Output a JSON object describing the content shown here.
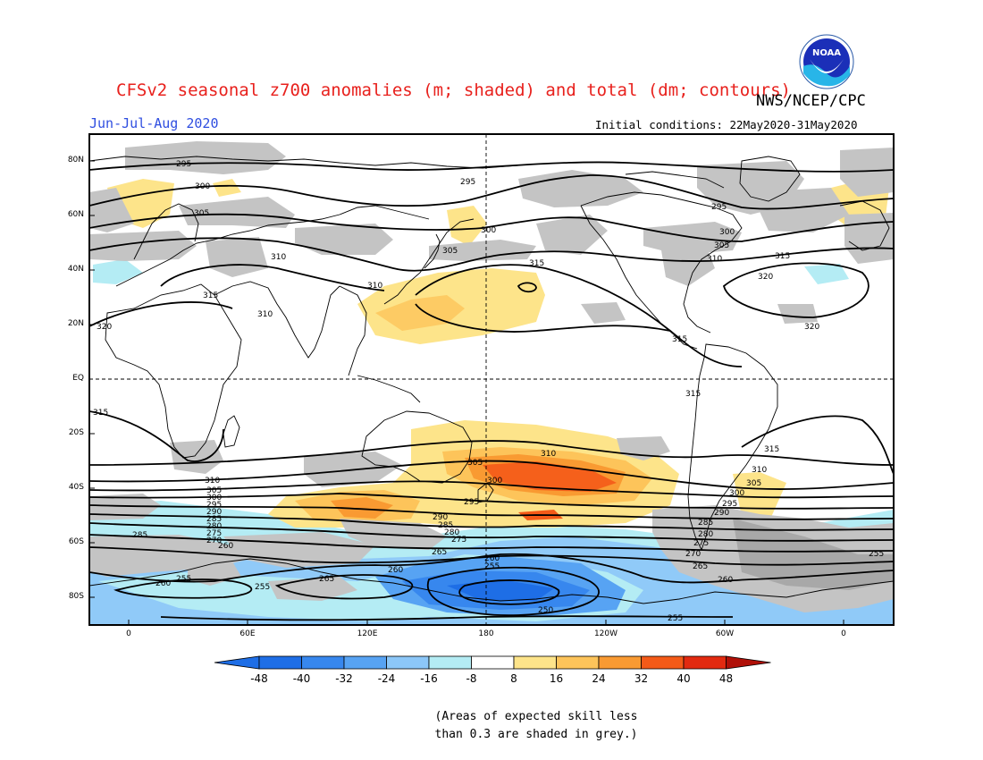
{
  "title": "CFSv2 seasonal z700 anomalies (m; shaded) and total (dm; contours)",
  "organization": "NWS/NCEP/CPC",
  "logo_text": "NOAA",
  "period": "Jun-Jul-Aug 2020",
  "initial_conditions": "Initial conditions: 22May2020-31May2020",
  "map": {
    "lat_labels": [
      "80N",
      "60N",
      "40N",
      "20N",
      "EQ",
      "20S",
      "40S",
      "60S",
      "80S"
    ],
    "lon_labels": [
      "0",
      "60E",
      "120E",
      "180",
      "120W",
      "60W",
      "0"
    ],
    "contour_labels": {
      "north": [
        "295",
        "300",
        "305",
        "310",
        "315",
        "320"
      ],
      "south": [
        "315",
        "310",
        "305",
        "300",
        "295",
        "290",
        "285",
        "280",
        "275",
        "270",
        "265",
        "260",
        "255",
        "250"
      ],
      "displayed": [
        {
          "text": "295",
          "id": "c295a"
        },
        {
          "text": "295",
          "id": "c295b"
        },
        {
          "text": "295",
          "id": "c295c"
        },
        {
          "text": "300",
          "id": "c300a"
        },
        {
          "text": "300",
          "id": "c300b"
        },
        {
          "text": "300",
          "id": "c300c"
        },
        {
          "text": "305",
          "id": "c305a"
        },
        {
          "text": "305",
          "id": "c305b"
        },
        {
          "text": "305",
          "id": "c305c"
        },
        {
          "text": "310",
          "id": "c310a"
        },
        {
          "text": "310",
          "id": "c310b"
        },
        {
          "text": "310",
          "id": "c310c"
        },
        {
          "text": "310",
          "id": "c310d"
        },
        {
          "text": "315",
          "id": "c315a"
        },
        {
          "text": "315",
          "id": "c315b"
        },
        {
          "text": "315",
          "id": "c315c"
        },
        {
          "text": "315",
          "id": "c315d"
        },
        {
          "text": "320",
          "id": "c320a"
        },
        {
          "text": "320",
          "id": "c320b"
        },
        {
          "text": "320",
          "id": "c320c"
        },
        {
          "text": "315",
          "id": "s315a"
        },
        {
          "text": "315",
          "id": "s315b"
        },
        {
          "text": "315",
          "id": "s315c"
        },
        {
          "text": "310",
          "id": "s310a"
        },
        {
          "text": "310",
          "id": "s310b"
        },
        {
          "text": "310",
          "id": "s310c"
        },
        {
          "text": "305",
          "id": "s305a"
        },
        {
          "text": "305",
          "id": "s305b"
        },
        {
          "text": "305",
          "id": "s305c"
        },
        {
          "text": "300",
          "id": "s300a"
        },
        {
          "text": "300",
          "id": "s300b"
        },
        {
          "text": "300",
          "id": "s300c"
        },
        {
          "text": "295",
          "id": "s295a"
        },
        {
          "text": "295",
          "id": "s295b"
        },
        {
          "text": "295",
          "id": "s295c"
        },
        {
          "text": "290",
          "id": "s290a"
        },
        {
          "text": "290",
          "id": "s290b"
        },
        {
          "text": "290",
          "id": "s290c"
        },
        {
          "text": "285",
          "id": "s285a"
        },
        {
          "text": "285",
          "id": "s285b"
        },
        {
          "text": "285",
          "id": "s285c"
        },
        {
          "text": "285",
          "id": "s285d"
        },
        {
          "text": "280",
          "id": "s280a"
        },
        {
          "text": "280",
          "id": "s280b"
        },
        {
          "text": "280",
          "id": "s280c"
        },
        {
          "text": "275",
          "id": "s275a"
        },
        {
          "text": "275",
          "id": "s275b"
        },
        {
          "text": "275",
          "id": "s275c"
        },
        {
          "text": "270",
          "id": "s270a"
        },
        {
          "text": "270",
          "id": "s270b"
        },
        {
          "text": "265",
          "id": "s265a"
        },
        {
          "text": "265",
          "id": "s265b"
        },
        {
          "text": "265",
          "id": "s265c"
        },
        {
          "text": "260",
          "id": "s260a"
        },
        {
          "text": "260",
          "id": "s260b"
        },
        {
          "text": "260",
          "id": "s260c"
        },
        {
          "text": "260",
          "id": "s260d"
        },
        {
          "text": "260",
          "id": "s260e"
        },
        {
          "text": "255",
          "id": "s255a"
        },
        {
          "text": "255",
          "id": "s255b"
        },
        {
          "text": "255",
          "id": "s255c"
        },
        {
          "text": "255",
          "id": "s255d"
        },
        {
          "text": "255",
          "id": "s255e"
        },
        {
          "text": "250",
          "id": "s250a"
        }
      ]
    }
  },
  "colorbar": {
    "labels": [
      "-48",
      "-40",
      "-32",
      "-24",
      "-16",
      "-8",
      "8",
      "16",
      "24",
      "32",
      "40",
      "48"
    ],
    "colors": [
      "#1e6ee6",
      "#3787ee",
      "#57a3f3",
      "#8cc7f8",
      "#b4ecf4",
      "#ffffff",
      "#fde48a",
      "#fdc45a",
      "#f99a32",
      "#f45a18",
      "#e22a10",
      "#b01008"
    ],
    "under_color": "#1e6ee6",
    "over_color": "#b01008"
  },
  "skill_note_line1": "(Areas of expected skill less",
  "skill_note_line2": "than 0.3 are shaded in grey.)",
  "colors": {
    "title": "#e8211d",
    "period": "#2f4ee0",
    "skill_mask": "#c4c4c4"
  }
}
